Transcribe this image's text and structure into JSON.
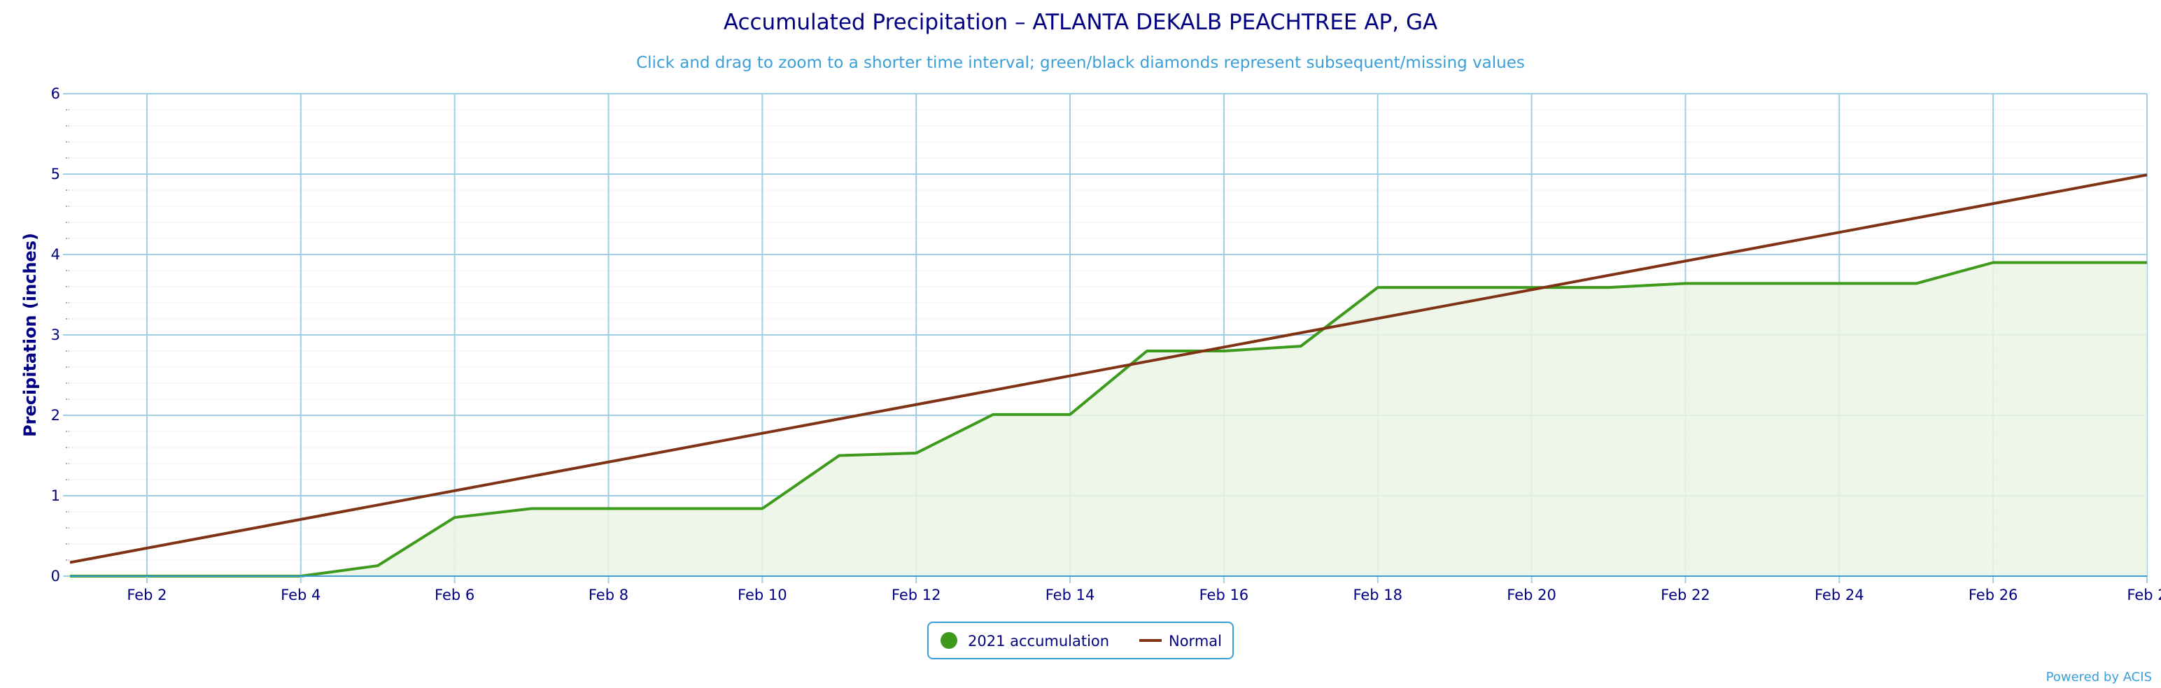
{
  "chart_data": {
    "type": "line",
    "title": "Accumulated Precipitation – ATLANTA DEKALB PEACHTREE AP, GA",
    "subtitle": "Click and drag to zoom to a shorter time interval; green/black diamonds represent subsequent/missing values",
    "ylabel": "Precipitation (inches)",
    "xlabel": "",
    "ylim": [
      0,
      6
    ],
    "yticks": [
      0,
      1,
      2,
      3,
      4,
      5,
      6
    ],
    "xlim": [
      1,
      28
    ],
    "xticks": [
      2,
      4,
      6,
      8,
      10,
      12,
      14,
      16,
      18,
      20,
      22,
      24,
      26,
      28
    ],
    "xtick_labels": [
      "Feb 2",
      "Feb 4",
      "Feb 6",
      "Feb 8",
      "Feb 10",
      "Feb 12",
      "Feb 14",
      "Feb 16",
      "Feb 18",
      "Feb 20",
      "Feb 22",
      "Feb 24",
      "Feb 26",
      "Feb 2"
    ],
    "grid": true,
    "legend_position": "bottom-center",
    "series": [
      {
        "name": "2021 accumulation",
        "color": "#3e9a1c",
        "fill": "#eaf4e4",
        "x": [
          1,
          2,
          3,
          4,
          5,
          6,
          7,
          8,
          9,
          10,
          11,
          12,
          13,
          14,
          15,
          16,
          17,
          18,
          19,
          20,
          21,
          22,
          23,
          24,
          25,
          26,
          27,
          28
        ],
        "values": [
          0.0,
          0.0,
          0.0,
          0.0,
          0.13,
          0.73,
          0.84,
          0.84,
          0.84,
          0.84,
          1.5,
          1.53,
          2.01,
          2.01,
          2.8,
          2.8,
          2.86,
          3.59,
          3.59,
          3.59,
          3.59,
          3.64,
          3.64,
          3.64,
          3.64,
          3.9,
          3.9,
          3.9
        ]
      },
      {
        "name": "Normal",
        "color": "#7f3314",
        "x": [
          1,
          28
        ],
        "values": [
          0.17,
          4.99
        ]
      }
    ]
  },
  "credits": "Powered by ACIS"
}
